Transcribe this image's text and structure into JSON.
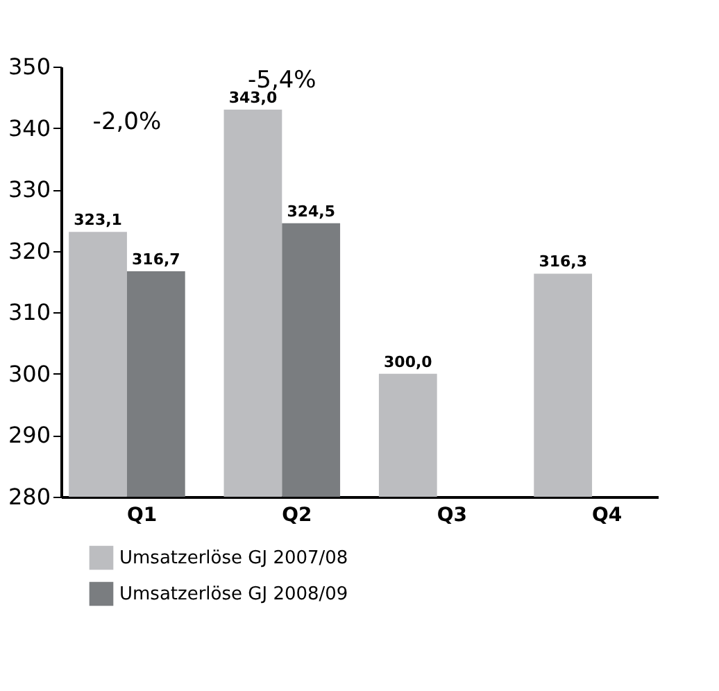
{
  "chart_data": {
    "type": "bar",
    "categories": [
      "Q1",
      "Q2",
      "Q3",
      "Q4"
    ],
    "series": [
      {
        "name": "Umsatzerlöse GJ 2007/08",
        "color": "#bcbdc0",
        "values": [
          323.1,
          343.0,
          300.0,
          316.3
        ],
        "value_labels": [
          "323,1",
          "343,0",
          "300,0",
          "316,3"
        ]
      },
      {
        "name": "Umsatzerlöse GJ 2008/09",
        "color": "#7a7d80",
        "values": [
          316.7,
          324.5,
          null,
          null
        ],
        "value_labels": [
          "316,7",
          "324,5",
          null,
          null
        ]
      }
    ],
    "ylim": [
      280,
      350
    ],
    "yticks": [
      280,
      290,
      300,
      310,
      320,
      330,
      340,
      350
    ],
    "annotations": [
      "-2,0%",
      "-5,4%"
    ],
    "grid": false,
    "legend": "bottom left"
  }
}
